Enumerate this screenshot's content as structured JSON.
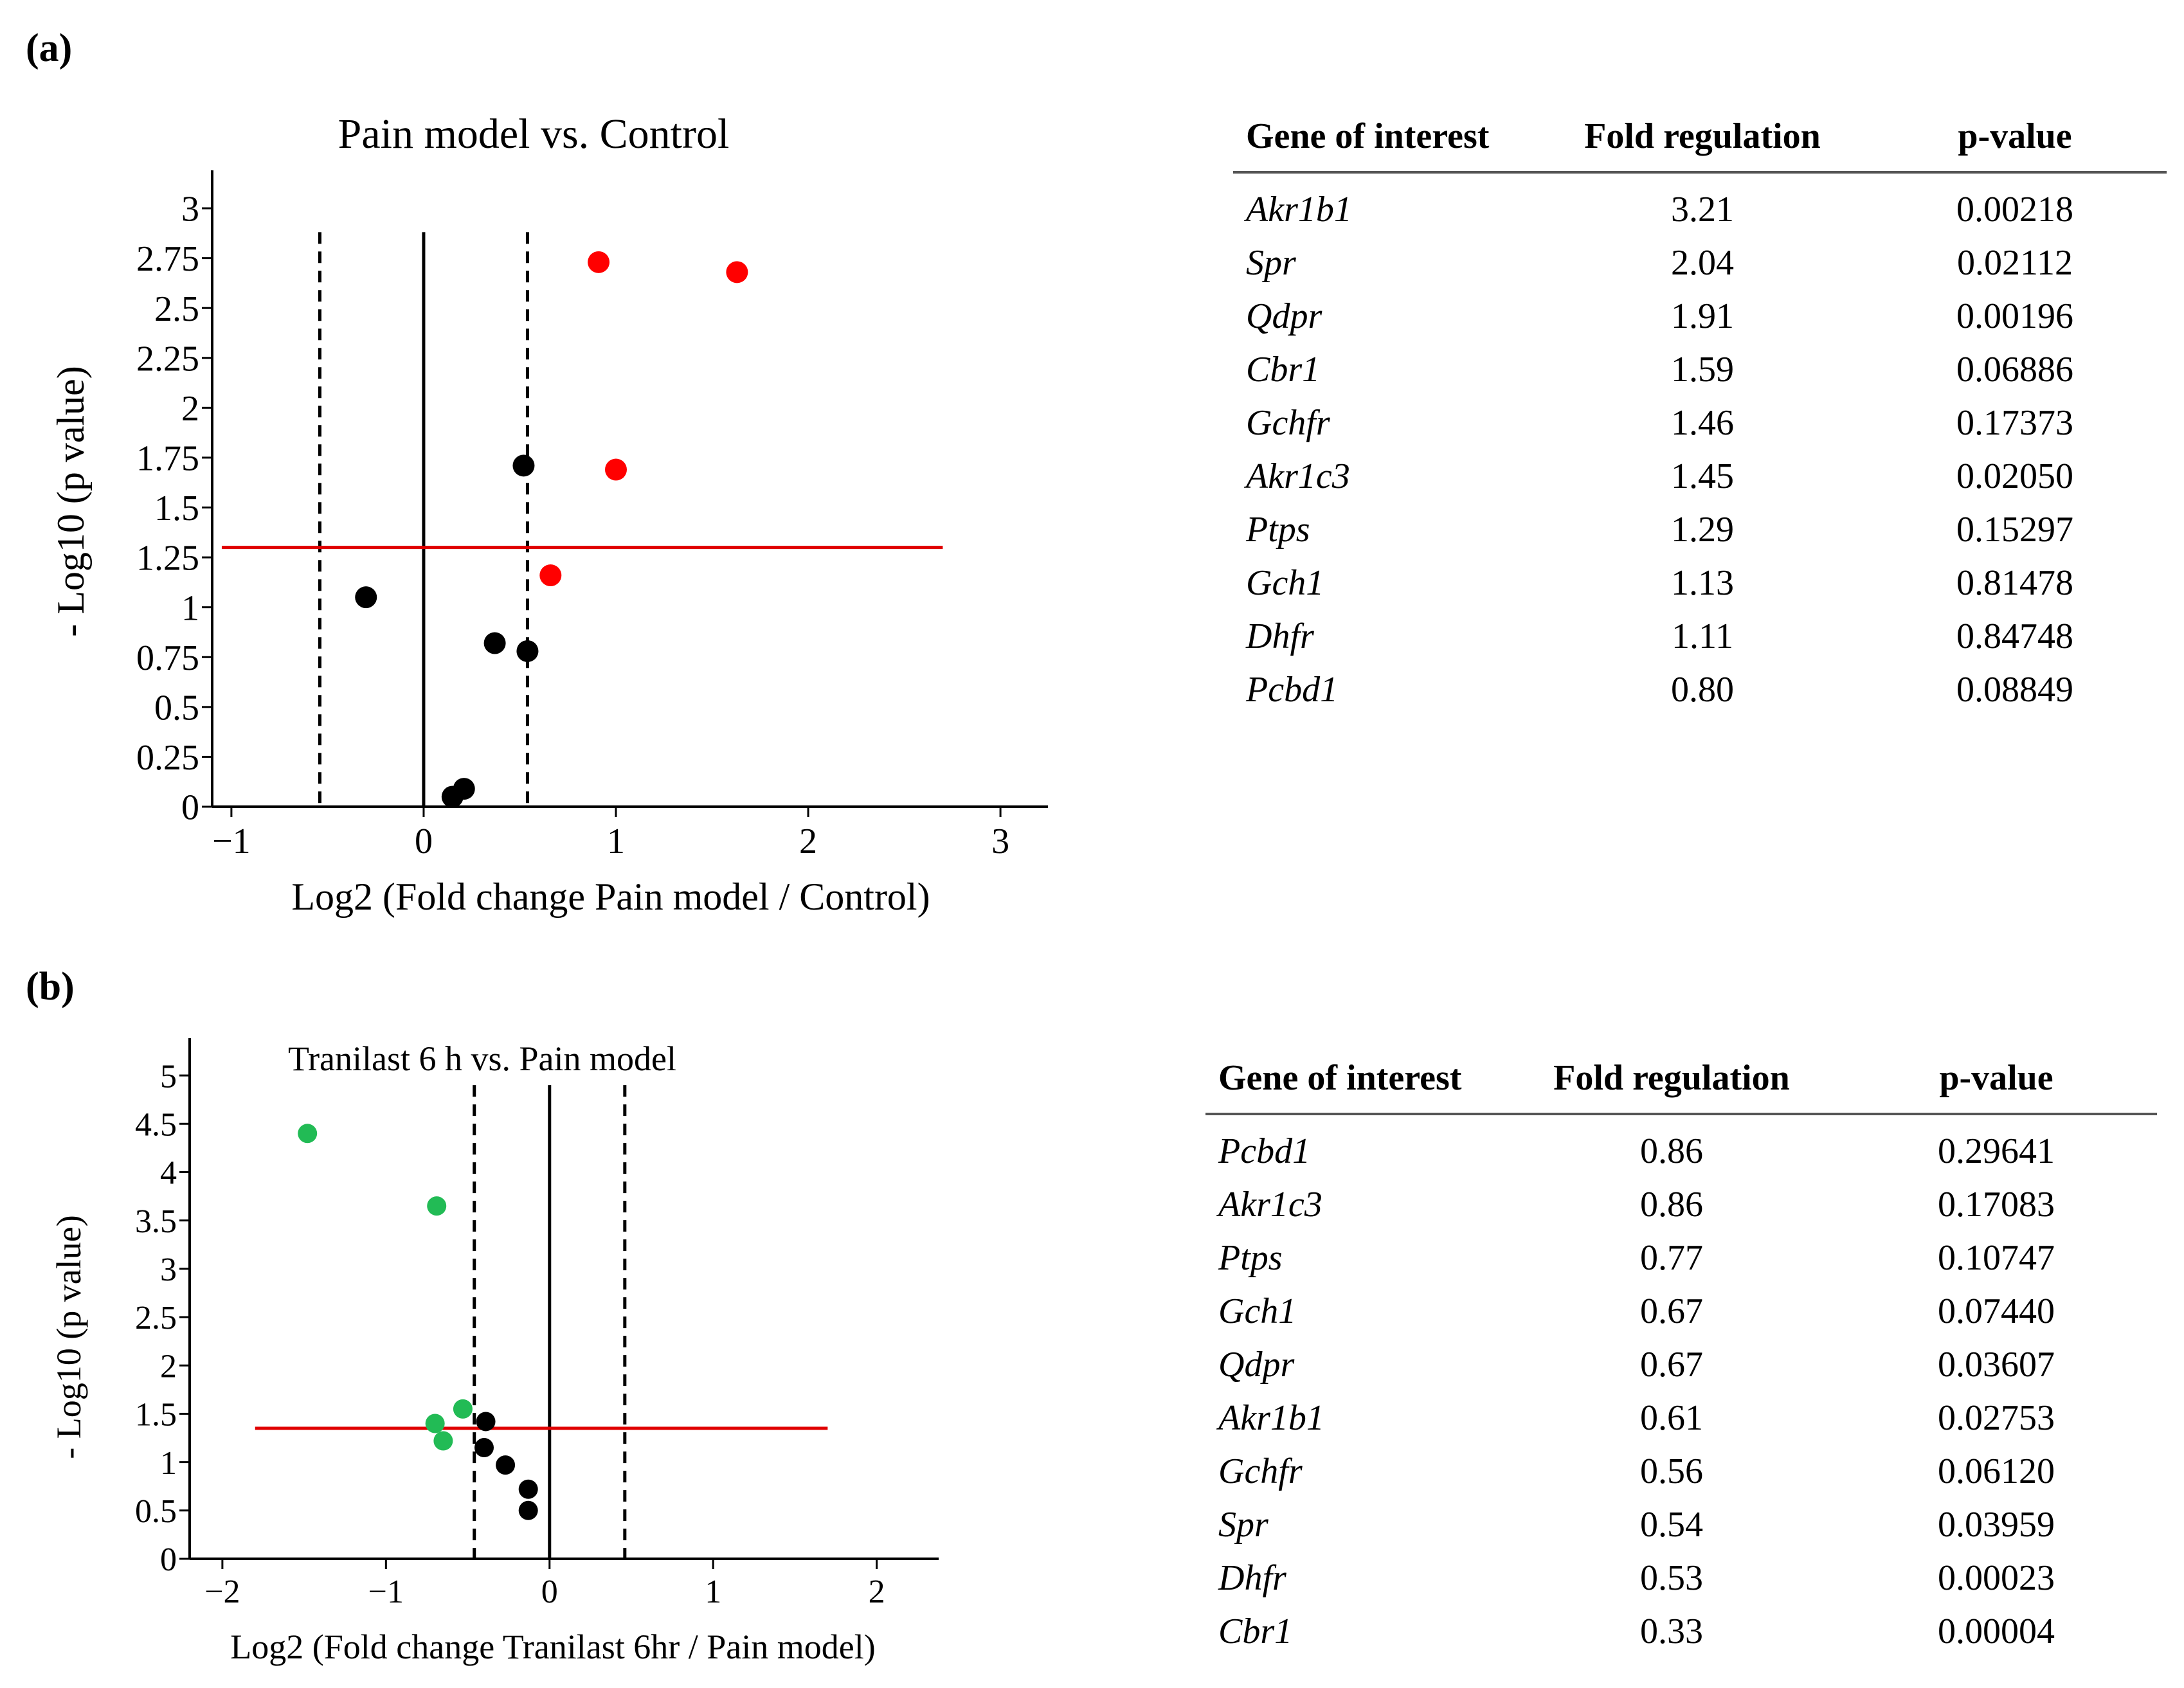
{
  "figure": {
    "panel_a_label": "(a)",
    "panel_b_label": "(b)"
  },
  "chart_data": [
    {
      "type": "scatter",
      "title": "Pain model vs. Control",
      "xlabel": "Log2 (Fold change Pain model / Control)",
      "ylabel": "- Log10 (p value)",
      "xlim": [
        -1.1,
        3.1
      ],
      "ylim": [
        0,
        3.1
      ],
      "x_ticks": [
        -1,
        0,
        1,
        2,
        3
      ],
      "x_tick_labels": [
        "−1",
        "0",
        "1",
        "2",
        "3"
      ],
      "y_ticks": [
        0,
        0.25,
        0.5,
        0.75,
        1,
        1.25,
        1.5,
        1.75,
        2,
        2.25,
        2.5,
        2.75,
        3
      ],
      "y_tick_labels": [
        "0",
        "0.25",
        "0.5",
        "0.75",
        "1",
        "1.25",
        "1.5",
        "1.75",
        "2",
        "2.25",
        "2.5",
        "2.75",
        "3"
      ],
      "significance_threshold": 1.3,
      "fold_lines": [
        -0.54,
        0.54
      ],
      "center_line": 0,
      "line_y_max": 2.88,
      "threshold_x_range": [
        -1.05,
        2.7
      ],
      "colors": {
        "up": "#ff0000",
        "neutral": "#000000",
        "threshold": "#e00000"
      },
      "points": [
        {
          "x": 0.91,
          "y": 2.73,
          "color": "up"
        },
        {
          "x": 1.63,
          "y": 2.68,
          "color": "up"
        },
        {
          "x": 1.0,
          "y": 1.69,
          "color": "up"
        },
        {
          "x": 0.66,
          "y": 1.16,
          "color": "up"
        },
        {
          "x": 0.52,
          "y": 1.71,
          "color": "neutral"
        },
        {
          "x": -0.3,
          "y": 1.05,
          "color": "neutral"
        },
        {
          "x": 0.37,
          "y": 0.82,
          "color": "neutral"
        },
        {
          "x": 0.54,
          "y": 0.78,
          "color": "neutral"
        },
        {
          "x": 0.21,
          "y": 0.09,
          "color": "neutral"
        },
        {
          "x": 0.15,
          "y": 0.05,
          "color": "neutral"
        }
      ]
    },
    {
      "type": "scatter",
      "title": "Tranilast 6 h vs. Pain model",
      "xlabel": "Log2 (Fold change Tranilast 6hr / Pain model)",
      "ylabel": "- Log10 (p value)",
      "xlim": [
        -2.2,
        2.3
      ],
      "ylim": [
        0,
        5.2
      ],
      "x_ticks": [
        -2,
        -1,
        0,
        1,
        2
      ],
      "x_tick_labels": [
        "−2",
        "−1",
        "0",
        "1",
        "2"
      ],
      "y_ticks": [
        0,
        0.5,
        1,
        1.5,
        2,
        2.5,
        3,
        3.5,
        4,
        4.5,
        5
      ],
      "y_tick_labels": [
        "0",
        "0.5",
        "1",
        "1.5",
        "2",
        "2.5",
        "3",
        "3.5",
        "4",
        "4.5",
        "5"
      ],
      "significance_threshold": 1.35,
      "fold_lines": [
        -0.46,
        0.46
      ],
      "center_line": 0,
      "line_y_max": 4.9,
      "threshold_x_range": [
        -1.8,
        1.7
      ],
      "colors": {
        "down": "#22bb55",
        "neutral": "#000000",
        "threshold": "#e00000"
      },
      "points": [
        {
          "x": -1.48,
          "y": 4.4,
          "color": "down"
        },
        {
          "x": -0.69,
          "y": 3.65,
          "color": "down"
        },
        {
          "x": -0.53,
          "y": 1.55,
          "color": "down"
        },
        {
          "x": -0.7,
          "y": 1.4,
          "color": "down"
        },
        {
          "x": -0.65,
          "y": 1.22,
          "color": "down"
        },
        {
          "x": -0.39,
          "y": 1.42,
          "color": "neutral"
        },
        {
          "x": -0.4,
          "y": 1.15,
          "color": "neutral"
        },
        {
          "x": -0.27,
          "y": 0.97,
          "color": "neutral"
        },
        {
          "x": -0.13,
          "y": 0.72,
          "color": "neutral"
        },
        {
          "x": -0.13,
          "y": 0.5,
          "color": "neutral"
        }
      ]
    }
  ],
  "table_a": {
    "headers": [
      "Gene of interest",
      "Fold regulation",
      "p-value"
    ],
    "rows": [
      [
        "Akr1b1",
        "3.21",
        "0.00218"
      ],
      [
        "Spr",
        "2.04",
        "0.02112"
      ],
      [
        "Qdpr",
        "1.91",
        "0.00196"
      ],
      [
        "Cbr1",
        "1.59",
        "0.06886"
      ],
      [
        "Gchfr",
        "1.46",
        "0.17373"
      ],
      [
        "Akr1c3",
        "1.45",
        "0.02050"
      ],
      [
        "Ptps",
        "1.29",
        "0.15297"
      ],
      [
        "Gch1",
        "1.13",
        "0.81478"
      ],
      [
        "Dhfr",
        "1.11",
        "0.84748"
      ],
      [
        "Pcbd1",
        "0.80",
        "0.08849"
      ]
    ]
  },
  "table_b": {
    "headers": [
      "Gene of interest",
      "Fold regulation",
      "p-value"
    ],
    "rows": [
      [
        "Pcbd1",
        "0.86",
        "0.29641"
      ],
      [
        "Akr1c3",
        "0.86",
        "0.17083"
      ],
      [
        "Ptps",
        "0.77",
        "0.10747"
      ],
      [
        "Gch1",
        "0.67",
        "0.07440"
      ],
      [
        "Qdpr",
        "0.67",
        "0.03607"
      ],
      [
        "Akr1b1",
        "0.61",
        "0.02753"
      ],
      [
        "Gchfr",
        "0.56",
        "0.06120"
      ],
      [
        "Spr",
        "0.54",
        "0.03959"
      ],
      [
        "Dhfr",
        "0.53",
        "0.00023"
      ],
      [
        "Cbr1",
        "0.33",
        "0.00004"
      ]
    ]
  }
}
